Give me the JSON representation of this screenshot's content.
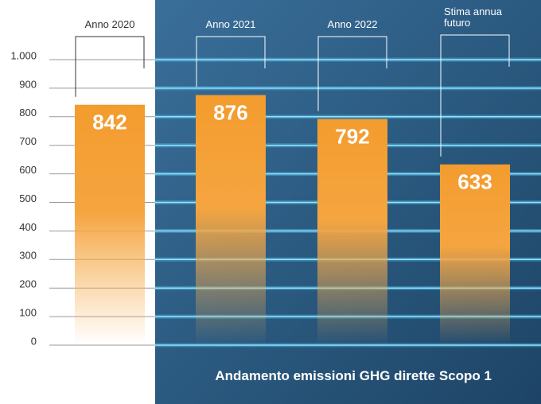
{
  "chart_data": {
    "type": "bar",
    "title": "Andamento emissioni GHG dirette Scopo 1",
    "categories": [
      "Anno 2020",
      "Anno 2021",
      "Anno 2022",
      "Stima annua futuro"
    ],
    "values": [
      842,
      876,
      792,
      633
    ],
    "color": "#f39c2e",
    "ylim": [
      0,
      1000
    ],
    "yticks": [
      0,
      100,
      200,
      300,
      400,
      500,
      600,
      700,
      800,
      900,
      {
        "value": 1000,
        "label": "1.000"
      }
    ],
    "grid": true
  }
}
